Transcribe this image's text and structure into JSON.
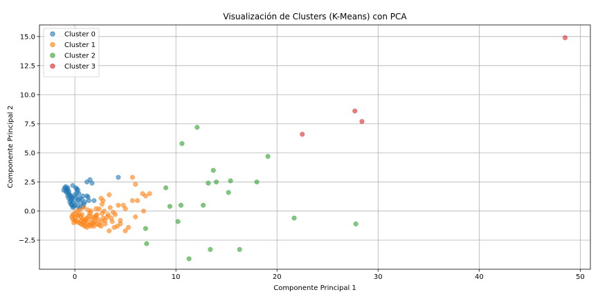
{
  "chart_data": {
    "type": "scatter",
    "title": "Visualización de Clusters (K-Means) con PCA",
    "xlabel": "Componente Principal 1",
    "ylabel": "Componente Principal 2",
    "xlim": [
      -3.5,
      51
    ],
    "ylim": [
      -5.0,
      16.0
    ],
    "xticks": [
      0,
      10,
      20,
      30,
      40,
      50
    ],
    "yticks": [
      -2.5,
      0.0,
      2.5,
      5.0,
      7.5,
      10.0,
      12.5,
      15.0
    ],
    "xtick_labels": [
      "0",
      "10",
      "20",
      "30",
      "40",
      "50"
    ],
    "ytick_labels": [
      "−2.5",
      "0.0",
      "2.5",
      "5.0",
      "7.5",
      "10.0",
      "12.5",
      "15.0"
    ],
    "grid": true,
    "legend_position": "top-left",
    "series": [
      {
        "name": "Cluster 0",
        "color": "#1f77b4",
        "points": [
          [
            -1.0,
            2.0
          ],
          [
            -0.9,
            2.1
          ],
          [
            -0.8,
            1.9
          ],
          [
            -0.7,
            2.0
          ],
          [
            -1.1,
            1.8
          ],
          [
            -0.9,
            1.7
          ],
          [
            -0.8,
            1.6
          ],
          [
            -0.7,
            1.8
          ],
          [
            -0.6,
            1.5
          ],
          [
            -0.5,
            1.4
          ],
          [
            -0.4,
            1.3
          ],
          [
            -0.3,
            1.2
          ],
          [
            -0.2,
            1.1
          ],
          [
            -0.4,
            1.0
          ],
          [
            -0.3,
            0.9
          ],
          [
            -0.5,
            0.8
          ],
          [
            -0.2,
            0.7
          ],
          [
            -0.4,
            0.6
          ],
          [
            -0.3,
            0.5
          ],
          [
            -0.1,
            0.4
          ],
          [
            -0.2,
            0.3
          ],
          [
            0.0,
            0.5
          ],
          [
            0.2,
            0.8
          ],
          [
            0.3,
            1.0
          ],
          [
            0.1,
            1.2
          ],
          [
            0.0,
            1.4
          ],
          [
            0.2,
            1.6
          ],
          [
            0.3,
            1.8
          ],
          [
            0.1,
            2.0
          ],
          [
            -0.2,
            2.2
          ],
          [
            0.2,
            1.9
          ],
          [
            0.4,
            1.5
          ],
          [
            0.5,
            1.1
          ],
          [
            0.6,
            0.7
          ],
          [
            0.3,
            0.4
          ],
          [
            -0.6,
            1.1
          ],
          [
            -0.7,
            1.3
          ],
          [
            -0.6,
            1.7
          ],
          [
            0.5,
            0.3
          ],
          [
            0.8,
            0.4
          ],
          [
            1.0,
            0.8
          ],
          [
            1.2,
            1.3
          ],
          [
            1.3,
            1.2
          ],
          [
            0.8,
            1.3
          ],
          [
            1.5,
            2.7
          ],
          [
            1.2,
            2.5
          ],
          [
            1.7,
            2.4
          ],
          [
            1.9,
            0.9
          ],
          [
            4.3,
            2.9
          ],
          [
            1.4,
            0.9
          ],
          [
            0.7,
            1.0
          ],
          [
            0.9,
            0.6
          ]
        ]
      },
      {
        "name": "Cluster 1",
        "color": "#ff7f0e",
        "points": [
          [
            5.7,
            2.9
          ],
          [
            6.0,
            2.3
          ],
          [
            6.7,
            1.5
          ],
          [
            7.0,
            1.3
          ],
          [
            7.4,
            1.5
          ],
          [
            6.2,
            0.9
          ],
          [
            5.7,
            0.9
          ],
          [
            6.8,
            0.0
          ],
          [
            6.0,
            -0.5
          ],
          [
            5.0,
            0.2
          ],
          [
            4.8,
            0.5
          ],
          [
            4.3,
            0.5
          ],
          [
            4.5,
            -0.8
          ],
          [
            4.2,
            -1.3
          ],
          [
            4.5,
            -1.1
          ],
          [
            5.3,
            -1.4
          ],
          [
            5.0,
            -1.7
          ],
          [
            3.9,
            -1.4
          ],
          [
            3.7,
            -0.9
          ],
          [
            3.4,
            -1.7
          ],
          [
            3.8,
            -0.1
          ],
          [
            3.5,
            0.3
          ],
          [
            2.8,
            0.9
          ],
          [
            3.4,
            1.4
          ],
          [
            2.6,
            1.1
          ],
          [
            2.7,
            0.6
          ],
          [
            2.4,
            0.2
          ],
          [
            2.2,
            -0.3
          ],
          [
            2.0,
            -0.6
          ],
          [
            1.8,
            -1.0
          ],
          [
            1.6,
            -1.3
          ],
          [
            1.4,
            -1.2
          ],
          [
            1.2,
            -1.4
          ],
          [
            1.0,
            -1.3
          ],
          [
            0.8,
            -1.2
          ],
          [
            0.6,
            -1.1
          ],
          [
            0.4,
            -1.0
          ],
          [
            0.2,
            -0.9
          ],
          [
            0.0,
            -0.8
          ],
          [
            -0.2,
            -0.7
          ],
          [
            -0.3,
            -0.5
          ],
          [
            -0.2,
            -0.3
          ],
          [
            0.0,
            -0.2
          ],
          [
            0.2,
            0.0
          ],
          [
            0.4,
            -0.3
          ],
          [
            0.6,
            -0.5
          ],
          [
            0.8,
            -0.7
          ],
          [
            1.0,
            -0.9
          ],
          [
            1.2,
            -0.6
          ],
          [
            1.4,
            -0.4
          ],
          [
            1.6,
            -0.7
          ],
          [
            1.8,
            -0.5
          ],
          [
            2.0,
            -0.9
          ],
          [
            2.2,
            -1.1
          ],
          [
            2.4,
            -1.2
          ],
          [
            2.6,
            -0.9
          ],
          [
            2.8,
            -0.6
          ],
          [
            3.0,
            -0.8
          ],
          [
            3.2,
            -0.5
          ],
          [
            3.0,
            -1.1
          ],
          [
            2.6,
            -1.3
          ],
          [
            1.7,
            -1.1
          ],
          [
            1.1,
            -0.7
          ],
          [
            0.7,
            -0.3
          ],
          [
            0.5,
            0.1
          ],
          [
            0.9,
            0.3
          ],
          [
            1.3,
            0.1
          ],
          [
            1.6,
            0.0
          ],
          [
            2.1,
            0.2
          ],
          [
            2.9,
            0.0
          ],
          [
            3.3,
            -0.3
          ],
          [
            0.3,
            -0.4
          ],
          [
            -0.1,
            -1.0
          ],
          [
            0.1,
            -0.6
          ],
          [
            1.9,
            -1.3
          ],
          [
            2.3,
            -0.7
          ],
          [
            0.9,
            -1.0
          ],
          [
            1.5,
            -0.2
          ],
          [
            3.6,
            -0.6
          ],
          [
            4.0,
            -0.3
          ],
          [
            2.7,
            -0.2
          ],
          [
            0.6,
            -0.8
          ],
          [
            1.3,
            -1.0
          ],
          [
            2.1,
            -0.4
          ]
        ]
      },
      {
        "name": "Cluster 2",
        "color": "#2ca02c",
        "points": [
          [
            12.1,
            7.2
          ],
          [
            10.6,
            5.8
          ],
          [
            19.1,
            4.7
          ],
          [
            13.7,
            3.5
          ],
          [
            9.0,
            2.0
          ],
          [
            13.2,
            2.4
          ],
          [
            14.0,
            2.5
          ],
          [
            15.4,
            2.6
          ],
          [
            18.0,
            2.5
          ],
          [
            15.2,
            1.6
          ],
          [
            12.7,
            0.5
          ],
          [
            10.5,
            0.5
          ],
          [
            9.4,
            0.4
          ],
          [
            10.2,
            -0.9
          ],
          [
            7.0,
            -1.5
          ],
          [
            21.7,
            -0.6
          ],
          [
            27.8,
            -1.1
          ],
          [
            7.1,
            -2.8
          ],
          [
            13.4,
            -3.3
          ],
          [
            16.3,
            -3.3
          ],
          [
            11.3,
            -4.1
          ]
        ]
      },
      {
        "name": "Cluster 3",
        "color": "#d62728",
        "points": [
          [
            48.5,
            14.9
          ],
          [
            27.7,
            8.6
          ],
          [
            28.4,
            7.7
          ],
          [
            22.5,
            6.6
          ]
        ]
      }
    ]
  }
}
